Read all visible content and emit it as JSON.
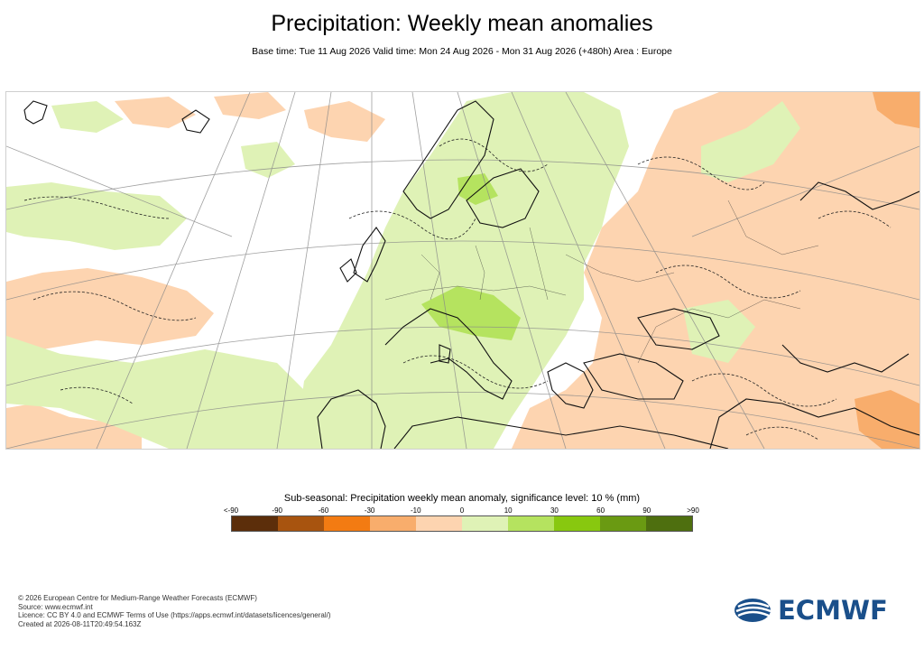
{
  "title": "Precipitation: Weekly mean anomalies",
  "subtitle": "Base time: Tue 11 Aug 2026 Valid time: Mon 24 Aug 2026 - Mon 31 Aug 2026 (+480h) Area : Europe",
  "legend": {
    "title": "Sub-seasonal: Precipitation weekly mean anomaly, significance level: 10 % (mm)",
    "labels": [
      "<-90",
      "-90",
      "-60",
      "-30",
      "-10",
      "0",
      "10",
      "30",
      "60",
      "90",
      ">90"
    ],
    "colors": [
      "#5c2e0a",
      "#a8540f",
      "#f37b12",
      "#f8ad6c",
      "#fdd4b0",
      "#dff2b6",
      "#b5e35f",
      "#88c80f",
      "#6a9a12",
      "#4e6f0f"
    ]
  },
  "footer": {
    "line1": "© 2026 European Centre for Medium-Range Weather Forecasts (ECMWF)",
    "line2": "Source: www.ecmwf.int",
    "line3": "Licence: CC BY 4.0 and ECMWF Terms of Use (https://apps.ecmwf.int/datasets/licences/general/)",
    "line4": "Created at 2026-08-11T20:49:54.163Z"
  },
  "logo": {
    "text": "ECMWF",
    "color": "#1a4f8a"
  },
  "map_colors": {
    "light_green": "#dff2b6",
    "mid_green": "#b5e35f",
    "light_orange": "#fdd4b0",
    "mid_orange": "#f8ad6c",
    "coast": "#111111",
    "grid": "#888888"
  }
}
